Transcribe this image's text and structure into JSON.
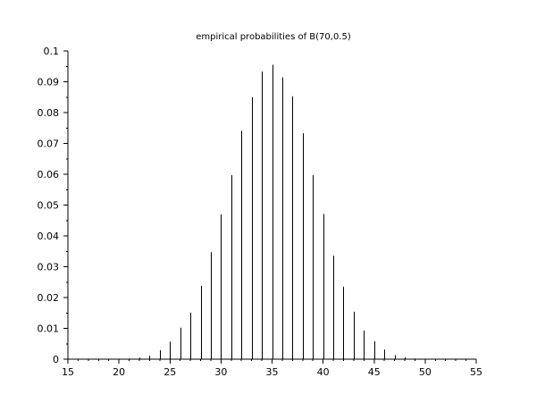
{
  "chart_data": {
    "type": "bar",
    "title": "empirical probabilities of B(70,0.5)",
    "xlabel": "",
    "ylabel": "",
    "xlim": [
      15,
      55
    ],
    "ylim": [
      0,
      0.1
    ],
    "xticks": [
      "15",
      "20",
      "25",
      "30",
      "35",
      "40",
      "45",
      "50",
      "55"
    ],
    "yticks": [
      "0",
      "0.01",
      "0.02",
      "0.03",
      "0.04",
      "0.05",
      "0.06",
      "0.07",
      "0.08",
      "0.09",
      "0.1"
    ],
    "grid": false,
    "bar_color": "#000000",
    "x": [
      20,
      21,
      22,
      23,
      24,
      25,
      26,
      27,
      28,
      29,
      30,
      31,
      32,
      33,
      34,
      35,
      36,
      37,
      38,
      39,
      40,
      41,
      42,
      43,
      44,
      45,
      46,
      47,
      48,
      49,
      50
    ],
    "values": [
      0.0001,
      0.0002,
      0.0005,
      0.0011,
      0.0029,
      0.0057,
      0.0102,
      0.0151,
      0.0238,
      0.0347,
      0.047,
      0.0597,
      0.0741,
      0.085,
      0.0933,
      0.0955,
      0.0914,
      0.0853,
      0.0733,
      0.0597,
      0.0471,
      0.0336,
      0.0235,
      0.0154,
      0.0093,
      0.0058,
      0.0031,
      0.0013,
      0.0006,
      0.0002,
      0.0001
    ]
  }
}
